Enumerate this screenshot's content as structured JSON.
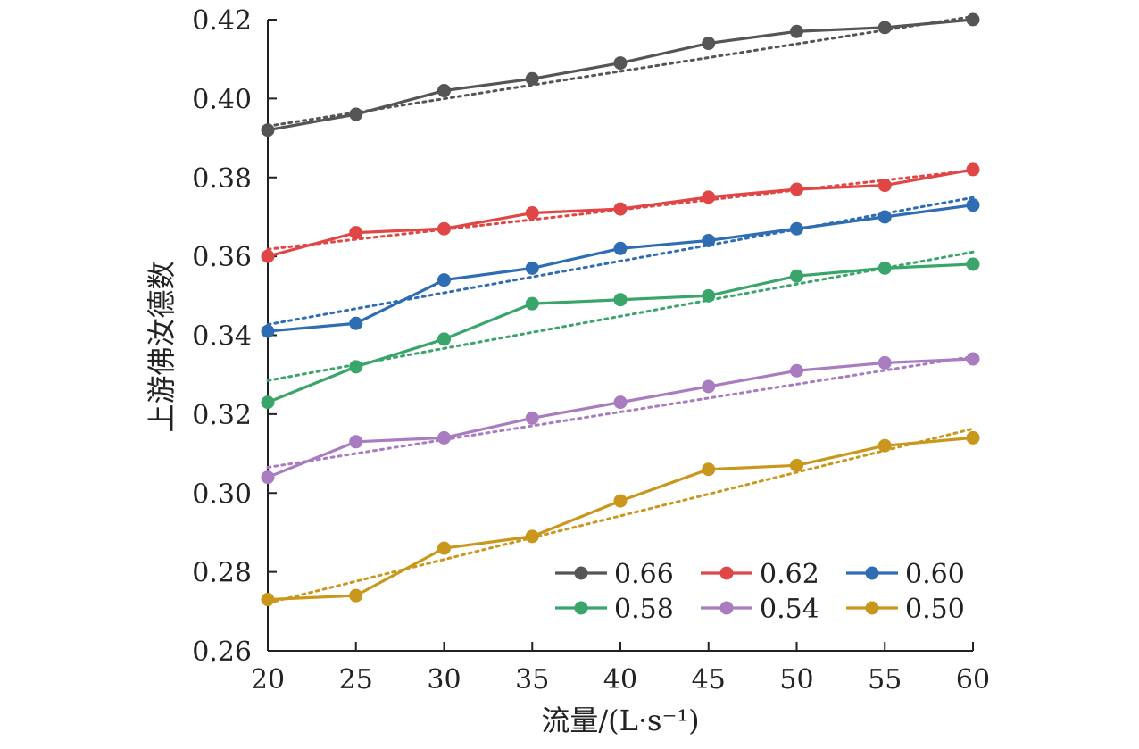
{
  "chart_data": {
    "type": "line",
    "title": "",
    "xlabel": "流量/(L·s⁻¹)",
    "ylabel": "上游佛汝德数",
    "xlim": [
      20,
      60
    ],
    "ylim": [
      0.26,
      0.42
    ],
    "x": [
      20,
      25,
      30,
      35,
      40,
      45,
      50,
      55,
      60
    ],
    "x_ticks": [
      "20",
      "25",
      "30",
      "35",
      "40",
      "45",
      "50",
      "55",
      "60"
    ],
    "y_ticks": [
      "0.26",
      "0.28",
      "0.30",
      "0.32",
      "0.34",
      "0.36",
      "0.38",
      "0.40",
      "0.42"
    ],
    "grid": false,
    "legend_position": "bottom-right",
    "trendlines": "dotted linear fit per series",
    "series": [
      {
        "name": "0.66",
        "color": "#555555",
        "values": [
          0.392,
          0.396,
          0.402,
          0.405,
          0.409,
          0.414,
          0.417,
          0.418,
          0.42
        ],
        "fit": [
          0.393,
          0.4208
        ]
      },
      {
        "name": "0.62",
        "color": "#e04646",
        "values": [
          0.36,
          0.366,
          0.367,
          0.371,
          0.372,
          0.375,
          0.377,
          0.378,
          0.382
        ],
        "fit": [
          0.3618,
          0.3818
        ]
      },
      {
        "name": "0.60",
        "color": "#2f6db3",
        "values": [
          0.341,
          0.343,
          0.354,
          0.357,
          0.362,
          0.364,
          0.367,
          0.37,
          0.373
        ],
        "fit": [
          0.3427,
          0.3749
        ]
      },
      {
        "name": "0.58",
        "color": "#3aa56a",
        "values": [
          0.323,
          0.332,
          0.339,
          0.348,
          0.349,
          0.35,
          0.355,
          0.357,
          0.358
        ],
        "fit": [
          0.3285,
          0.3611
        ]
      },
      {
        "name": "0.54",
        "color": "#a97cc0",
        "values": [
          0.304,
          0.313,
          0.314,
          0.319,
          0.323,
          0.327,
          0.331,
          0.333,
          0.334
        ],
        "fit": [
          0.3065,
          0.3346
        ]
      },
      {
        "name": "0.50",
        "color": "#c9971c",
        "values": [
          0.273,
          0.274,
          0.286,
          0.289,
          0.298,
          0.306,
          0.307,
          0.312,
          0.314
        ],
        "fit": [
          0.2721,
          0.3163
        ]
      }
    ]
  }
}
